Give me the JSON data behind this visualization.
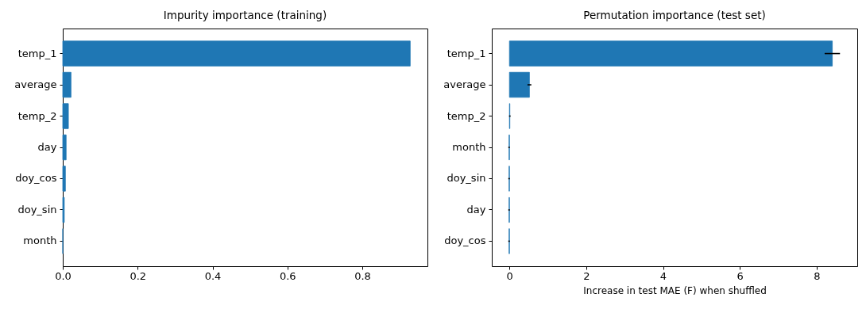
{
  "chart_data": [
    {
      "type": "bar",
      "orientation": "horizontal",
      "title": "Impurity importance (training)",
      "categories": [
        "temp_1",
        "average",
        "temp_2",
        "day",
        "doy_cos",
        "doy_sin",
        "month"
      ],
      "values": [
        0.928,
        0.022,
        0.015,
        0.009,
        0.007,
        0.004,
        0
      ],
      "color": "#1f77b4",
      "xlim": [
        0,
        0.974
      ],
      "xticks": [
        {
          "value": 0,
          "label": "0.0"
        },
        0.2,
        0.4,
        0.6,
        0.8
      ]
    },
    {
      "type": "bar",
      "orientation": "horizontal",
      "title": "Permutation importance (test set)",
      "xlabel": "Increase in test MAE (F) when shuffled",
      "categories": [
        "temp_1",
        "average",
        "temp_2",
        "month",
        "doy_sin",
        "day",
        "doy_cos"
      ],
      "values": [
        8.41,
        0.52,
        0.01,
        -0.01,
        -0.01,
        -0.01,
        -0.01
      ],
      "errors": [
        0.2,
        0.05,
        0.02,
        0.02,
        0.02,
        0.02,
        0.02
      ],
      "color": "#1f77b4",
      "xlim": [
        -0.46,
        9.06
      ],
      "xticks": [
        0,
        2,
        4,
        6,
        8
      ]
    }
  ]
}
